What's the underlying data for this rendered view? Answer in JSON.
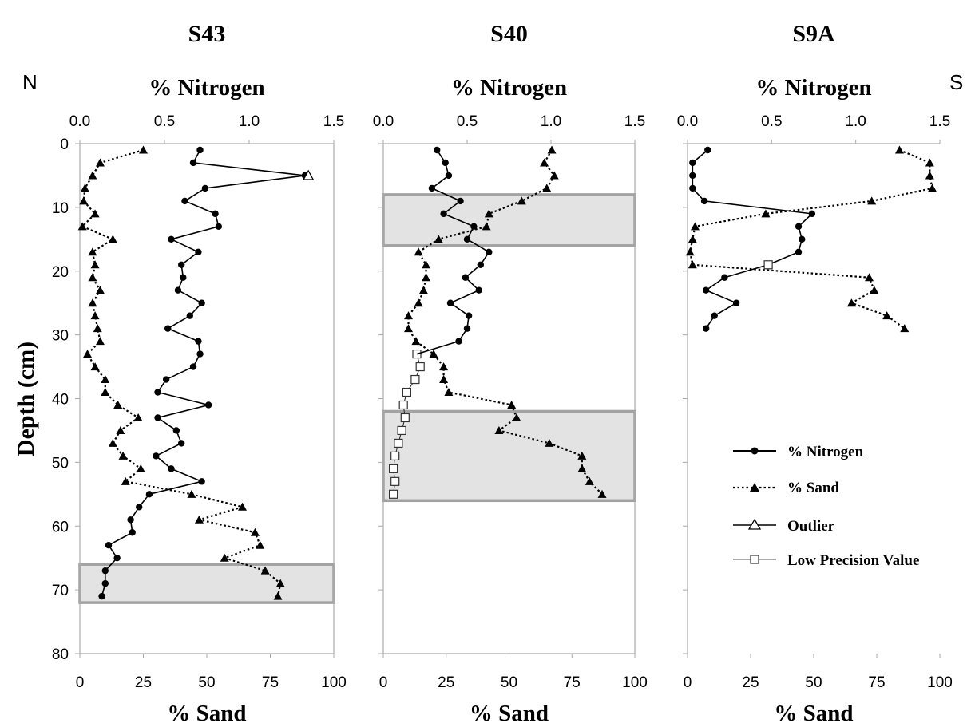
{
  "figure": {
    "left_label": "N",
    "right_label": "S",
    "y_axis_label": "Depth (cm)",
    "top_axis_label": "% Nitrogen",
    "bottom_axis_label": "% Sand",
    "legend": [
      {
        "name": "% Nitrogen",
        "style": "solid-circle"
      },
      {
        "name": "% Sand",
        "style": "dotted-triangle"
      },
      {
        "name": "Outlier",
        "style": "open-triangle"
      },
      {
        "name": "Low Precision Value",
        "style": "open-square"
      }
    ],
    "colors": {
      "highlight_fill": "#e3e3e3",
      "highlight_border": "#a2a2a2",
      "frame": "#aaaaaa",
      "series": "#000000"
    }
  },
  "chart_data": [
    {
      "type": "line",
      "title": "S43",
      "ylabel": "Depth (cm)",
      "ylim": [
        0,
        80
      ],
      "y_reversed": true,
      "y_ticks": [
        "0",
        "10",
        "20",
        "30",
        "40",
        "50",
        "60",
        "70",
        "80"
      ],
      "top_axis": {
        "label": "% Nitrogen",
        "lim": [
          0,
          1.5
        ],
        "ticks": [
          "0.0",
          "0.5",
          "1.0",
          "1.5"
        ]
      },
      "bottom_axis": {
        "label": "% Sand",
        "lim": [
          0,
          100
        ],
        "ticks": [
          "0",
          "25",
          "50",
          "75",
          "100"
        ]
      },
      "highlight_bands": [
        {
          "depth_from": 66,
          "depth_to": 72
        }
      ],
      "series": [
        {
          "name": "% Nitrogen",
          "axis": "top",
          "points": [
            [
              0.71,
              1
            ],
            [
              0.67,
              3
            ],
            [
              1.33,
              5
            ],
            [
              0.74,
              7
            ],
            [
              0.62,
              9
            ],
            [
              0.8,
              11
            ],
            [
              0.82,
              13
            ],
            [
              0.54,
              15
            ],
            [
              0.7,
              17
            ],
            [
              0.6,
              19
            ],
            [
              0.61,
              21
            ],
            [
              0.58,
              23
            ],
            [
              0.72,
              25
            ],
            [
              0.65,
              27
            ],
            [
              0.52,
              29
            ],
            [
              0.7,
              31
            ],
            [
              0.71,
              33
            ],
            [
              0.67,
              35
            ],
            [
              0.51,
              37
            ],
            [
              0.46,
              39
            ],
            [
              0.76,
              41
            ],
            [
              0.46,
              43
            ],
            [
              0.57,
              45
            ],
            [
              0.6,
              47
            ],
            [
              0.45,
              49
            ],
            [
              0.54,
              51
            ],
            [
              0.72,
              53
            ],
            [
              0.41,
              55
            ],
            [
              0.35,
              57
            ],
            [
              0.3,
              59
            ],
            [
              0.31,
              61
            ],
            [
              0.17,
              63
            ],
            [
              0.22,
              65
            ],
            [
              0.15,
              67
            ],
            [
              0.15,
              69
            ],
            [
              0.13,
              71
            ]
          ]
        },
        {
          "name": "% Sand",
          "axis": "bottom",
          "points": [
            [
              25,
              1
            ],
            [
              8,
              3
            ],
            [
              5,
              5
            ],
            [
              2,
              7
            ],
            [
              1.5,
              9
            ],
            [
              6,
              11
            ],
            [
              1,
              13
            ],
            [
              13,
              15
            ],
            [
              5,
              17
            ],
            [
              6,
              19
            ],
            [
              5,
              21
            ],
            [
              8,
              23
            ],
            [
              5,
              25
            ],
            [
              6,
              27
            ],
            [
              7,
              29
            ],
            [
              8,
              31
            ],
            [
              3,
              33
            ],
            [
              6,
              35
            ],
            [
              10,
              37
            ],
            [
              10,
              39
            ],
            [
              15,
              41
            ],
            [
              23,
              43
            ],
            [
              16,
              45
            ],
            [
              13,
              47
            ],
            [
              17,
              49
            ],
            [
              24,
              51
            ],
            [
              18,
              53
            ],
            [
              44,
              55
            ],
            [
              64,
              57
            ],
            [
              47,
              59
            ],
            [
              69,
              61
            ],
            [
              71,
              63
            ],
            [
              57,
              65
            ],
            [
              73,
              67
            ],
            [
              79,
              69
            ],
            [
              78,
              71
            ]
          ]
        },
        {
          "name": "Outlier",
          "axis": "top",
          "points": [
            [
              1.35,
              5
            ]
          ]
        }
      ]
    },
    {
      "type": "line",
      "title": "S40",
      "ylim": [
        0,
        80
      ],
      "y_reversed": true,
      "top_axis": {
        "label": "% Nitrogen",
        "lim": [
          0,
          1.5
        ],
        "ticks": [
          "0.0",
          "0.5",
          "1.0",
          "1.5"
        ]
      },
      "bottom_axis": {
        "label": "% Sand",
        "lim": [
          0,
          100
        ],
        "ticks": [
          "0",
          "25",
          "50",
          "75",
          "100"
        ]
      },
      "highlight_bands": [
        {
          "depth_from": 8,
          "depth_to": 16
        },
        {
          "depth_from": 42,
          "depth_to": 56
        }
      ],
      "series": [
        {
          "name": "% Nitrogen",
          "axis": "top",
          "points": [
            [
              0.32,
              1
            ],
            [
              0.37,
              3
            ],
            [
              0.39,
              5
            ],
            [
              0.29,
              7
            ],
            [
              0.46,
              9
            ],
            [
              0.36,
              11
            ],
            [
              0.54,
              13
            ],
            [
              0.5,
              15
            ],
            [
              0.63,
              17
            ],
            [
              0.58,
              19
            ],
            [
              0.49,
              21
            ],
            [
              0.57,
              23
            ],
            [
              0.4,
              25
            ],
            [
              0.51,
              27
            ],
            [
              0.5,
              29
            ],
            [
              0.45,
              31
            ]
          ]
        },
        {
          "name": "% Sand",
          "axis": "bottom",
          "points": [
            [
              67,
              1
            ],
            [
              64,
              3
            ],
            [
              68,
              5
            ],
            [
              65,
              7
            ],
            [
              55,
              9
            ],
            [
              42,
              11
            ],
            [
              41,
              13
            ],
            [
              22,
              15
            ],
            [
              14,
              17
            ],
            [
              17,
              19
            ],
            [
              17,
              21
            ],
            [
              16,
              23
            ],
            [
              14,
              25
            ],
            [
              10,
              27
            ],
            [
              10,
              29
            ],
            [
              13,
              31
            ],
            [
              20,
              33
            ],
            [
              24,
              35
            ],
            [
              24,
              37
            ],
            [
              26,
              39
            ],
            [
              51,
              41
            ],
            [
              53,
              43
            ],
            [
              46,
              45
            ],
            [
              66,
              47
            ],
            [
              79,
              49
            ],
            [
              79,
              51
            ],
            [
              82,
              53
            ],
            [
              87,
              55
            ]
          ]
        },
        {
          "name": "Low Precision Value",
          "axis": "top",
          "points": [
            [
              0.2,
              33
            ],
            [
              0.22,
              35
            ],
            [
              0.19,
              37
            ],
            [
              0.14,
              39
            ],
            [
              0.12,
              41
            ],
            [
              0.13,
              43
            ],
            [
              0.11,
              45
            ],
            [
              0.09,
              47
            ],
            [
              0.07,
              49
            ],
            [
              0.06,
              51
            ],
            [
              0.07,
              53
            ],
            [
              0.06,
              55
            ]
          ]
        }
      ]
    },
    {
      "type": "line",
      "title": "S9A",
      "ylim": [
        0,
        80
      ],
      "y_reversed": true,
      "top_axis": {
        "label": "% Nitrogen",
        "lim": [
          0,
          1.5
        ],
        "ticks": [
          "0.0",
          "0.5",
          "1.0",
          "1.5"
        ]
      },
      "bottom_axis": {
        "label": "% Sand",
        "lim": [
          0,
          100
        ],
        "ticks": [
          "0",
          "25",
          "50",
          "75",
          "100"
        ]
      },
      "highlight_bands": [],
      "series": [
        {
          "name": "% Nitrogen",
          "axis": "top",
          "points": [
            [
              0.12,
              1
            ],
            [
              0.03,
              3
            ],
            [
              0.03,
              5
            ],
            [
              0.03,
              7
            ],
            [
              0.1,
              9
            ],
            [
              0.74,
              11
            ],
            [
              0.66,
              13
            ],
            [
              0.68,
              15
            ],
            [
              0.66,
              17
            ],
            [
              0.48,
              19
            ],
            [
              0.22,
              21
            ],
            [
              0.11,
              23
            ],
            [
              0.29,
              25
            ],
            [
              0.16,
              27
            ],
            [
              0.11,
              29
            ]
          ]
        },
        {
          "name": "% Sand",
          "axis": "bottom",
          "points": [
            [
              84,
              1
            ],
            [
              96,
              3
            ],
            [
              96,
              5
            ],
            [
              97,
              7
            ],
            [
              73,
              9
            ],
            [
              31,
              11
            ],
            [
              3,
              13
            ],
            [
              2,
              15
            ],
            [
              1,
              17
            ],
            [
              2,
              19
            ],
            [
              72,
              21
            ],
            [
              74,
              23
            ],
            [
              65,
              25
            ],
            [
              79,
              27
            ],
            [
              86,
              29
            ]
          ]
        },
        {
          "name": "Low Precision Value",
          "axis": "top",
          "points": [
            [
              0.48,
              19
            ]
          ]
        }
      ]
    }
  ]
}
